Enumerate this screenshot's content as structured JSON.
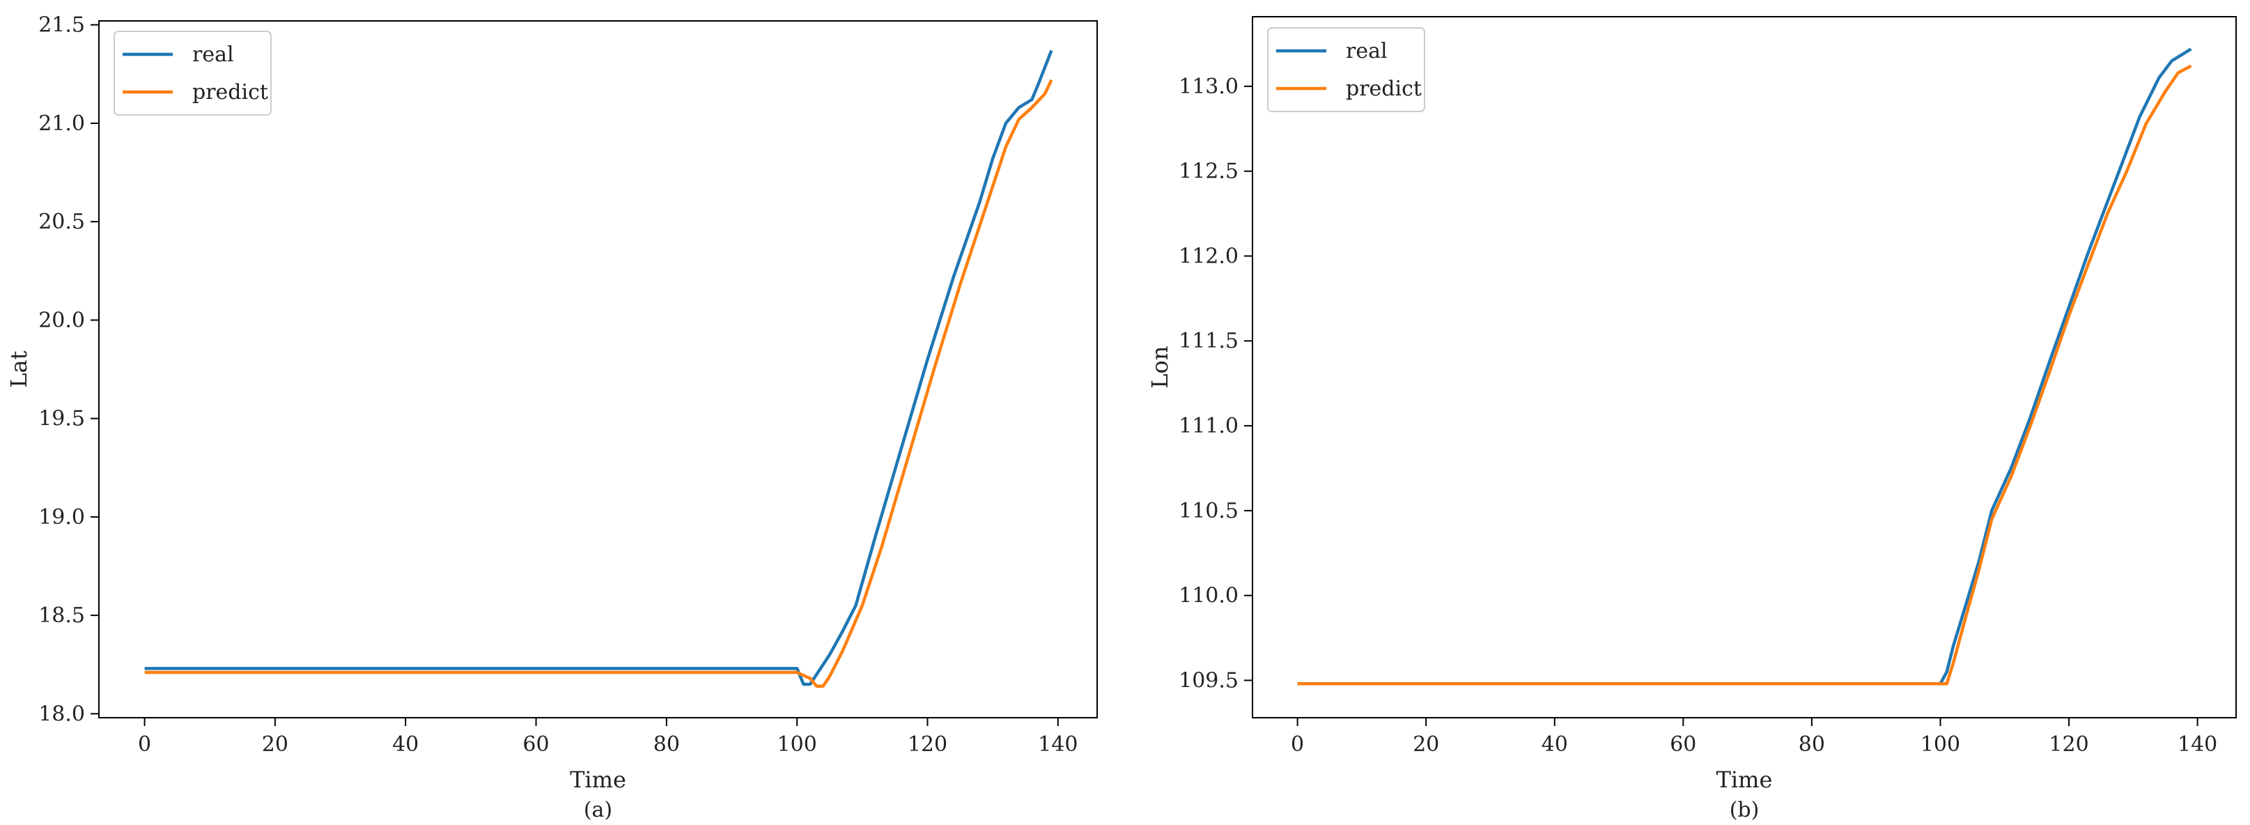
{
  "chart_data": [
    {
      "type": "line",
      "caption": "(a)",
      "xlabel": "Time",
      "ylabel": "Lat",
      "xlim": [
        -7,
        146
      ],
      "ylim": [
        17.98,
        21.52
      ],
      "xticks": [
        0,
        20,
        40,
        60,
        80,
        100,
        120,
        140
      ],
      "yticks": [
        18.0,
        18.5,
        19.0,
        19.5,
        20.0,
        20.5,
        21.0,
        21.5
      ],
      "ytick_labels": [
        "18.0",
        "18.5",
        "19.0",
        "19.5",
        "20.0",
        "20.5",
        "21.0",
        "21.5"
      ],
      "legend_position": "upper-left",
      "grid": false,
      "series": [
        {
          "name": "real",
          "color": "#1f77b4",
          "points": [
            [
              0,
              18.23
            ],
            [
              100,
              18.23
            ],
            [
              101,
              18.15
            ],
            [
              102,
              18.15
            ],
            [
              103,
              18.2
            ],
            [
              105,
              18.3
            ],
            [
              107,
              18.42
            ],
            [
              109,
              18.55
            ],
            [
              112,
              18.9
            ],
            [
              116,
              19.35
            ],
            [
              120,
              19.8
            ],
            [
              124,
              20.22
            ],
            [
              128,
              20.6
            ],
            [
              130,
              20.82
            ],
            [
              132,
              21.0
            ],
            [
              134,
              21.08
            ],
            [
              136,
              21.12
            ],
            [
              137,
              21.2
            ],
            [
              139,
              21.37
            ]
          ]
        },
        {
          "name": "predict",
          "color": "#ff7f0e",
          "points": [
            [
              0,
              18.21
            ],
            [
              100,
              18.21
            ],
            [
              102,
              18.18
            ],
            [
              103,
              18.14
            ],
            [
              104,
              18.14
            ],
            [
              105,
              18.19
            ],
            [
              107,
              18.32
            ],
            [
              110,
              18.55
            ],
            [
              113,
              18.85
            ],
            [
              117,
              19.3
            ],
            [
              121,
              19.75
            ],
            [
              125,
              20.18
            ],
            [
              129,
              20.58
            ],
            [
              132,
              20.88
            ],
            [
              134,
              21.02
            ],
            [
              136,
              21.08
            ],
            [
              138,
              21.15
            ],
            [
              139,
              21.22
            ]
          ]
        }
      ]
    },
    {
      "type": "line",
      "caption": "(b)",
      "xlabel": "Time",
      "ylabel": "Lon",
      "xlim": [
        -7,
        146
      ],
      "ylim": [
        109.28,
        113.41
      ],
      "xticks": [
        0,
        20,
        40,
        60,
        80,
        100,
        120,
        140
      ],
      "yticks": [
        109.5,
        110.0,
        110.5,
        111.0,
        111.5,
        112.0,
        112.5,
        113.0
      ],
      "ytick_labels": [
        "109.5",
        "110.0",
        "110.5",
        "111.0",
        "111.5",
        "112.0",
        "112.5",
        "113.0"
      ],
      "legend_position": "upper-left",
      "grid": false,
      "series": [
        {
          "name": "real",
          "color": "#1f77b4",
          "points": [
            [
              0,
              109.48
            ],
            [
              100,
              109.48
            ],
            [
              101,
              109.55
            ],
            [
              102,
              109.7
            ],
            [
              104,
              109.95
            ],
            [
              106,
              110.2
            ],
            [
              108,
              110.5
            ],
            [
              111,
              110.75
            ],
            [
              114,
              111.05
            ],
            [
              117,
              111.38
            ],
            [
              120,
              111.7
            ],
            [
              123,
              112.02
            ],
            [
              126,
              112.32
            ],
            [
              128,
              112.52
            ],
            [
              131,
              112.82
            ],
            [
              134,
              113.05
            ],
            [
              136,
              113.15
            ],
            [
              139,
              113.22
            ]
          ]
        },
        {
          "name": "predict",
          "color": "#ff7f0e",
          "points": [
            [
              0,
              109.48
            ],
            [
              101,
              109.48
            ],
            [
              102,
              109.6
            ],
            [
              104,
              109.88
            ],
            [
              106,
              110.15
            ],
            [
              108,
              110.45
            ],
            [
              111,
              110.7
            ],
            [
              114,
              111.0
            ],
            [
              117,
              111.32
            ],
            [
              120,
              111.65
            ],
            [
              123,
              111.95
            ],
            [
              126,
              112.25
            ],
            [
              129,
              112.5
            ],
            [
              132,
              112.78
            ],
            [
              135,
              112.97
            ],
            [
              137,
              113.08
            ],
            [
              139,
              113.12
            ]
          ]
        }
      ]
    }
  ]
}
